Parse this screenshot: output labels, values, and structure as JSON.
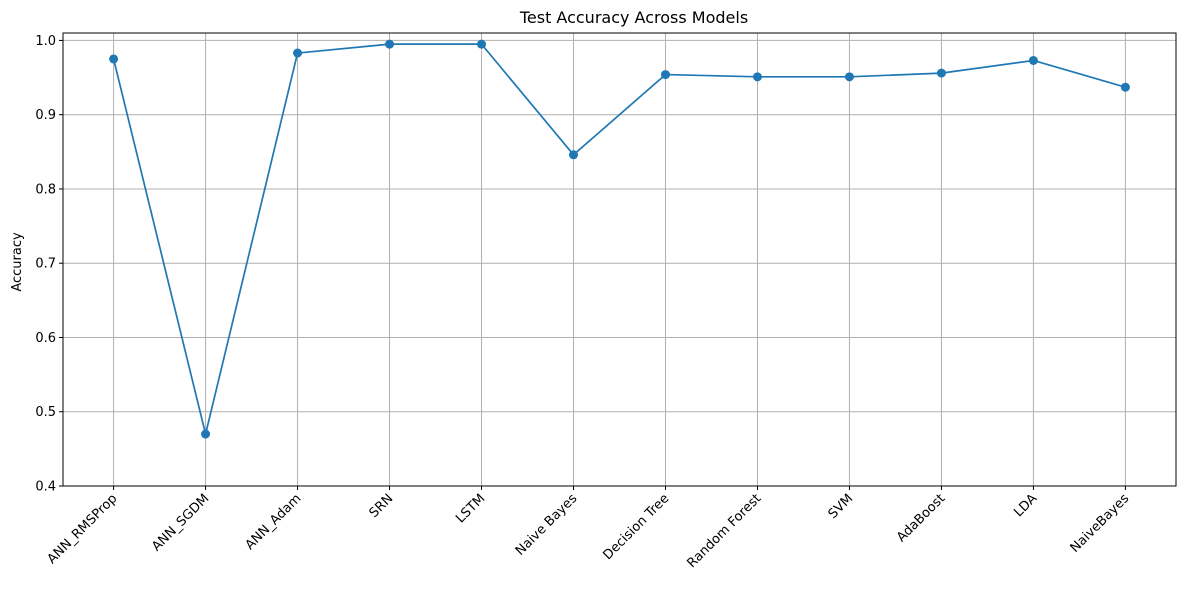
{
  "chart_data": {
    "type": "line",
    "title": "Test Accuracy Across Models",
    "xlabel": "",
    "ylabel": "Accuracy",
    "categories": [
      "ANN_RMSProp",
      "ANN_SGDM",
      "ANN_Adam",
      "SRN",
      "LSTM",
      "Naive Bayes",
      "Decision Tree",
      "Random Forest",
      "SVM",
      "AdaBoost",
      "LDA",
      "NaiveBayes"
    ],
    "series": [
      {
        "values": [
          0.975,
          0.47,
          0.983,
          0.995,
          0.995,
          0.846,
          0.954,
          0.951,
          0.951,
          0.956,
          0.973,
          0.937
        ],
        "color": "#1f77b4",
        "marker": "circle"
      }
    ],
    "ylim": [
      0.4,
      1.01
    ],
    "yticks": [
      0.4,
      0.5,
      0.6,
      0.7,
      0.8,
      0.9,
      1.0
    ],
    "ytick_labels": [
      "0.4",
      "0.5",
      "0.6",
      "0.7",
      "0.8",
      "0.9",
      "1.0"
    ],
    "grid": true,
    "xtick_rotation": 45
  }
}
